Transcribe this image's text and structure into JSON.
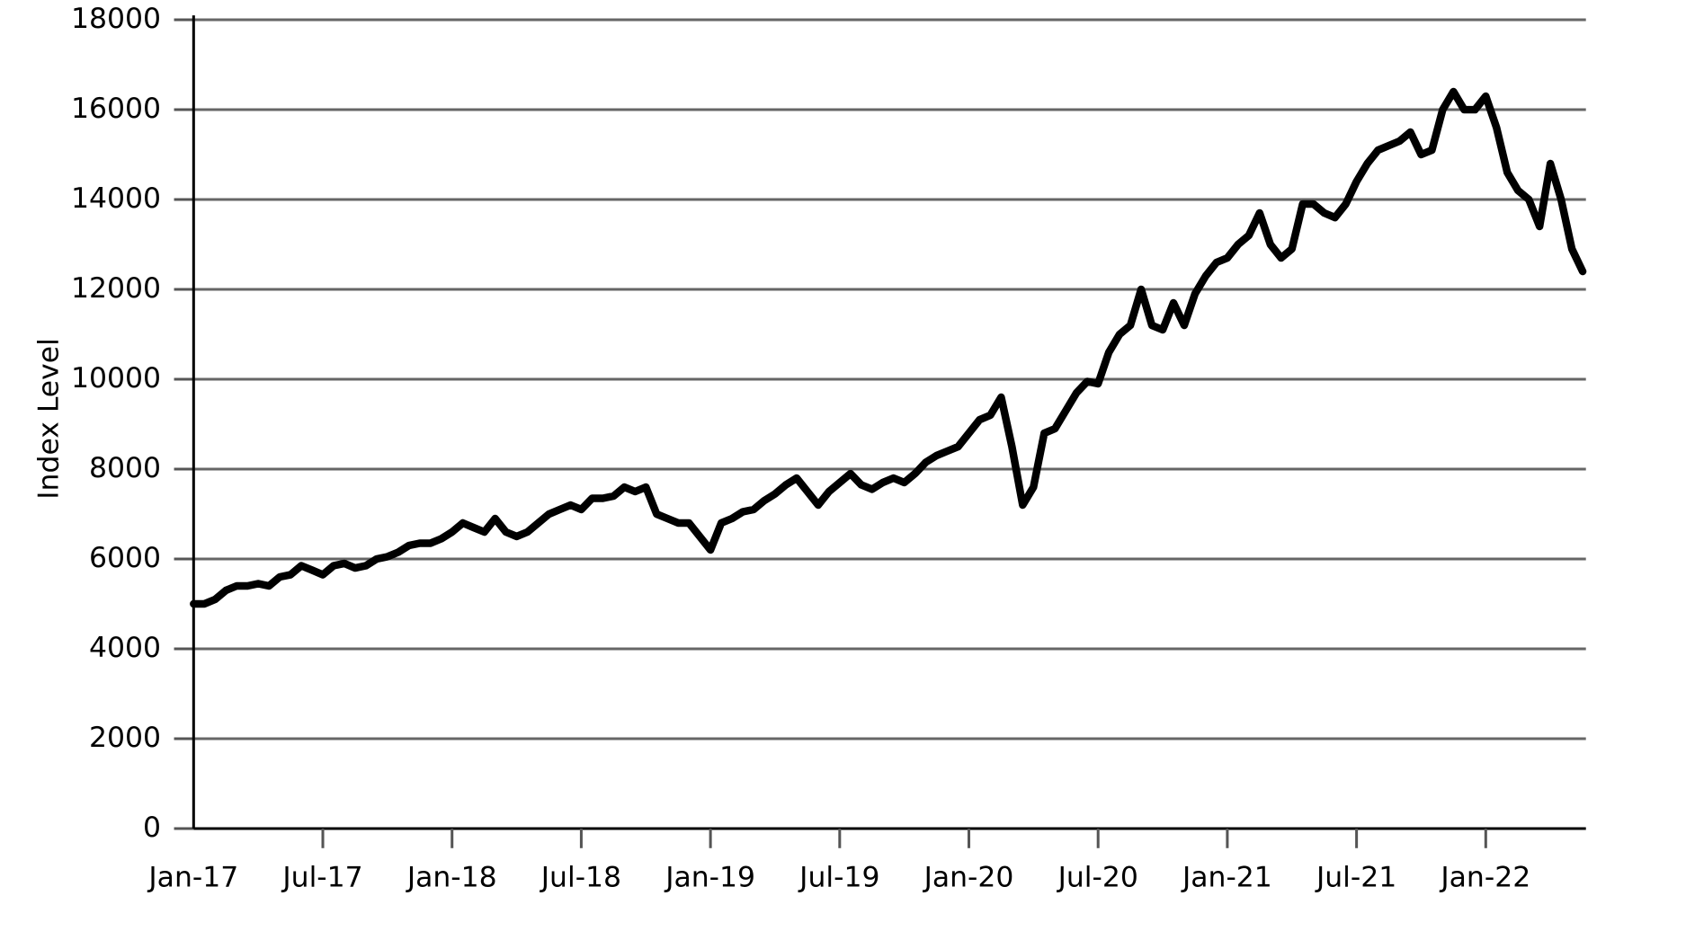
{
  "chart_data": {
    "type": "line",
    "y_label": "Index Level",
    "categories": [
      "Jan-17",
      null,
      null,
      null,
      null,
      null,
      null,
      null,
      null,
      null,
      null,
      null,
      "Jul-17",
      null,
      null,
      null,
      null,
      null,
      null,
      null,
      null,
      null,
      null,
      null,
      "Jan-18",
      null,
      null,
      null,
      null,
      null,
      null,
      null,
      null,
      null,
      null,
      null,
      "Jul-18",
      null,
      null,
      null,
      null,
      null,
      null,
      null,
      null,
      null,
      null,
      null,
      "Jan-19",
      null,
      null,
      null,
      null,
      null,
      null,
      null,
      null,
      null,
      null,
      null,
      "Jul-19",
      null,
      null,
      null,
      null,
      null,
      null,
      null,
      null,
      null,
      null,
      null,
      "Jan-20",
      null,
      null,
      null,
      null,
      null,
      null,
      null,
      null,
      null,
      null,
      null,
      "Jul-20",
      null,
      null,
      null,
      null,
      null,
      null,
      null,
      null,
      null,
      null,
      null,
      "Jan-21",
      null,
      null,
      null,
      null,
      null,
      null,
      null,
      null,
      null,
      null,
      null,
      "Jul-21",
      null,
      null,
      null,
      null,
      null,
      null,
      null,
      null,
      null,
      null,
      null,
      "Jan-22",
      null,
      null,
      null,
      null,
      null,
      null,
      null,
      null,
      null
    ],
    "series": [
      {
        "color": "#000000",
        "values": [
          5000,
          5000,
          5100,
          5300,
          5400,
          5400,
          5450,
          5400,
          5600,
          5650,
          5850,
          5750,
          5650,
          5850,
          5900,
          5800,
          5850,
          6000,
          6050,
          6150,
          6300,
          6350,
          6350,
          6450,
          6600,
          6800,
          6700,
          6600,
          6900,
          6600,
          6500,
          6600,
          6800,
          7000,
          7100,
          7200,
          7100,
          7350,
          7350,
          7400,
          7600,
          7500,
          7600,
          7000,
          6900,
          6800,
          6800,
          6500,
          6200,
          6800,
          6900,
          7050,
          7100,
          7300,
          7450,
          7650,
          7800,
          7500,
          7200,
          7500,
          7700,
          7900,
          7650,
          7550,
          7700,
          7800,
          7700,
          7900,
          8150,
          8300,
          8400,
          8500,
          8800,
          9100,
          9200,
          9600,
          8500,
          7200,
          7600,
          8800,
          8900,
          9300,
          9700,
          9950,
          9900,
          10600,
          11000,
          11200,
          12000,
          11200,
          11100,
          11700,
          11200,
          11900,
          12300,
          12600,
          12700,
          13000,
          13200,
          13700,
          13000,
          12700,
          12900,
          13900,
          13900,
          13700,
          13600,
          13900,
          14400,
          14800,
          15100,
          15200,
          15300,
          15500,
          15000,
          15100,
          16000,
          16400,
          16000,
          16000,
          16300,
          15600,
          14600,
          14200,
          14000,
          13400,
          14800,
          14000,
          12900,
          12400
        ]
      }
    ],
    "ylim": [
      0,
      18000
    ],
    "yticks": [
      0,
      2000,
      4000,
      6000,
      8000,
      10000,
      12000,
      14000,
      16000,
      18000
    ],
    "grid": true
  }
}
